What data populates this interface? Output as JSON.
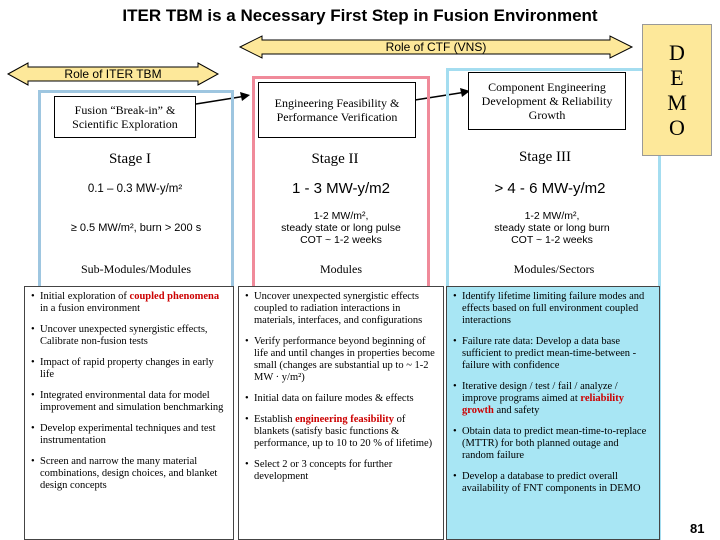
{
  "title": "ITER TBM is a Necessary First Step in Fusion Environment",
  "banners": {
    "ctf": "Role of CTF (VNS)",
    "iter": "Role of ITER TBM"
  },
  "demo": [
    "D",
    "E",
    "M",
    "O"
  ],
  "columns": [
    {
      "header": "Fusion “Break-in” & Scientific Exploration",
      "stage": "Stage I",
      "mw": "0.1 – 0.3 MW-y/m²",
      "detail": "≥ 0.5 MW/m², burn > 200 s",
      "section": "Sub-Modules/Modules"
    },
    {
      "header": "Engineering Feasibility & Performance Verification",
      "stage": "Stage II",
      "mw": "1 - 3 MW-y/m2",
      "detail_lines": [
        "1-2 MW/m²,",
        "steady state or long pulse",
        "COT ~ 1-2 weeks"
      ],
      "section": "Modules"
    },
    {
      "header": "Component Engineering Development & Reliability Growth",
      "stage": "Stage III",
      "mw": "> 4 - 6 MW-y/m2",
      "detail_lines": [
        "1-2 MW/m²,",
        "steady state or long burn",
        "COT ~ 1-2 weeks"
      ],
      "section": "Modules/Sectors"
    }
  ],
  "col1_bullets": [
    {
      "pre": "Initial exploration of ",
      "hl": "coupled phenomena",
      "post": " in a fusion environment"
    },
    {
      "pre": "Uncover unexpected synergistic effects, Calibrate non-fusion tests",
      "hl": "",
      "post": ""
    },
    {
      "pre": "Impact of rapid property changes in early life",
      "hl": "",
      "post": ""
    },
    {
      "pre": "Integrated environmental data for model improvement and simulation benchmarking",
      "hl": "",
      "post": ""
    },
    {
      "pre": "Develop experimental techniques and test instrumentation",
      "hl": "",
      "post": ""
    },
    {
      "pre": "Screen and narrow the many material combinations, design choices, and blanket design concepts",
      "hl": "",
      "post": ""
    }
  ],
  "col2_bullets": [
    {
      "pre": "Uncover unexpected synergistic effects coupled to radiation interactions in materials, interfaces, and configurations",
      "hl": "",
      "post": ""
    },
    {
      "pre": "Verify performance beyond beginning of life and until changes in properties become small (changes are substantial up to ~ 1-2 MW · y/m²)",
      "hl": "",
      "post": ""
    },
    {
      "pre": "Initial data on failure modes & effects",
      "hl": "",
      "post": ""
    },
    {
      "pre": "Establish ",
      "hl": "engineering feasibility",
      "post": " of blankets (satisfy basic functions & performance, up to 10 to 20 % of lifetime)"
    },
    {
      "pre": "Select 2 or 3 concepts for further development",
      "hl": "",
      "post": ""
    }
  ],
  "col3_bullets": [
    {
      "pre": "Identify lifetime limiting failure modes and effects based on full environment coupled interactions",
      "hl": "",
      "post": ""
    },
    {
      "pre": "Failure rate data: Develop a data base sufficient to predict mean-time-between -failure with confidence",
      "hl": "",
      "post": ""
    },
    {
      "pre": "Iterative design / test / fail / analyze / improve programs aimed at ",
      "hl": "reliability growth",
      "post": " and safety"
    },
    {
      "pre": "Obtain data to predict mean-time-to-replace (MTTR) for both planned outage and random failure",
      "hl": "",
      "post": ""
    },
    {
      "pre": "Develop a database to predict overall availability of FNT components in DEMO",
      "hl": "",
      "post": ""
    }
  ],
  "page_number": "81",
  "colors": {
    "ctf_arrow": "#fde89a",
    "iter_arrow": "#fde89a",
    "col1_frame": "#9ec6e0",
    "col2_frame": "#f08a9a",
    "col3_frame": "#a4ddf0",
    "col2_list_bg": "#ffffff",
    "col3_list_bg": "#a8e6f4",
    "highlight": "#cc0000"
  }
}
